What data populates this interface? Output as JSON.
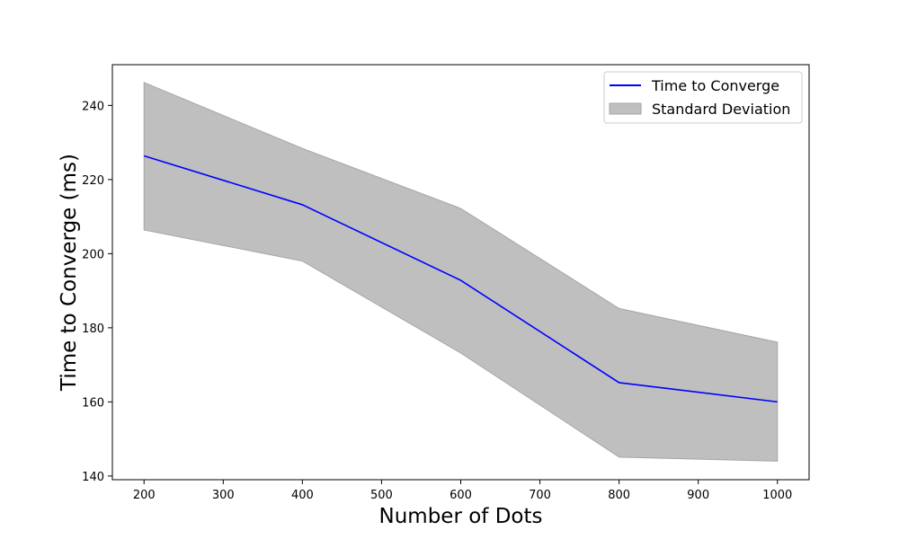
{
  "chart_data": {
    "type": "line",
    "title": "",
    "xlabel": "Number of Dots",
    "ylabel": "Time to Converge (ms)",
    "xlim": [
      160,
      1040
    ],
    "ylim": [
      139,
      251
    ],
    "x_ticks": [
      200,
      300,
      400,
      500,
      600,
      700,
      800,
      900,
      1000
    ],
    "y_ticks": [
      140,
      160,
      180,
      200,
      220,
      240
    ],
    "grid": false,
    "legend_position": "top-right",
    "x": [
      200,
      400,
      600,
      800,
      1000
    ],
    "series": [
      {
        "name": "Time to Converge",
        "kind": "line",
        "color": "#0000ff",
        "values": [
          226.4,
          213.2,
          192.8,
          165.2,
          160.0
        ]
      },
      {
        "name": "Standard Deviation",
        "kind": "band",
        "color": "#bfbfbf",
        "edge_color": "#a6a6a6",
        "upper": [
          246.2,
          228.4,
          212.2,
          185.2,
          176.1
        ],
        "lower": [
          206.4,
          198.0,
          173.2,
          145.1,
          144.0
        ]
      }
    ]
  }
}
